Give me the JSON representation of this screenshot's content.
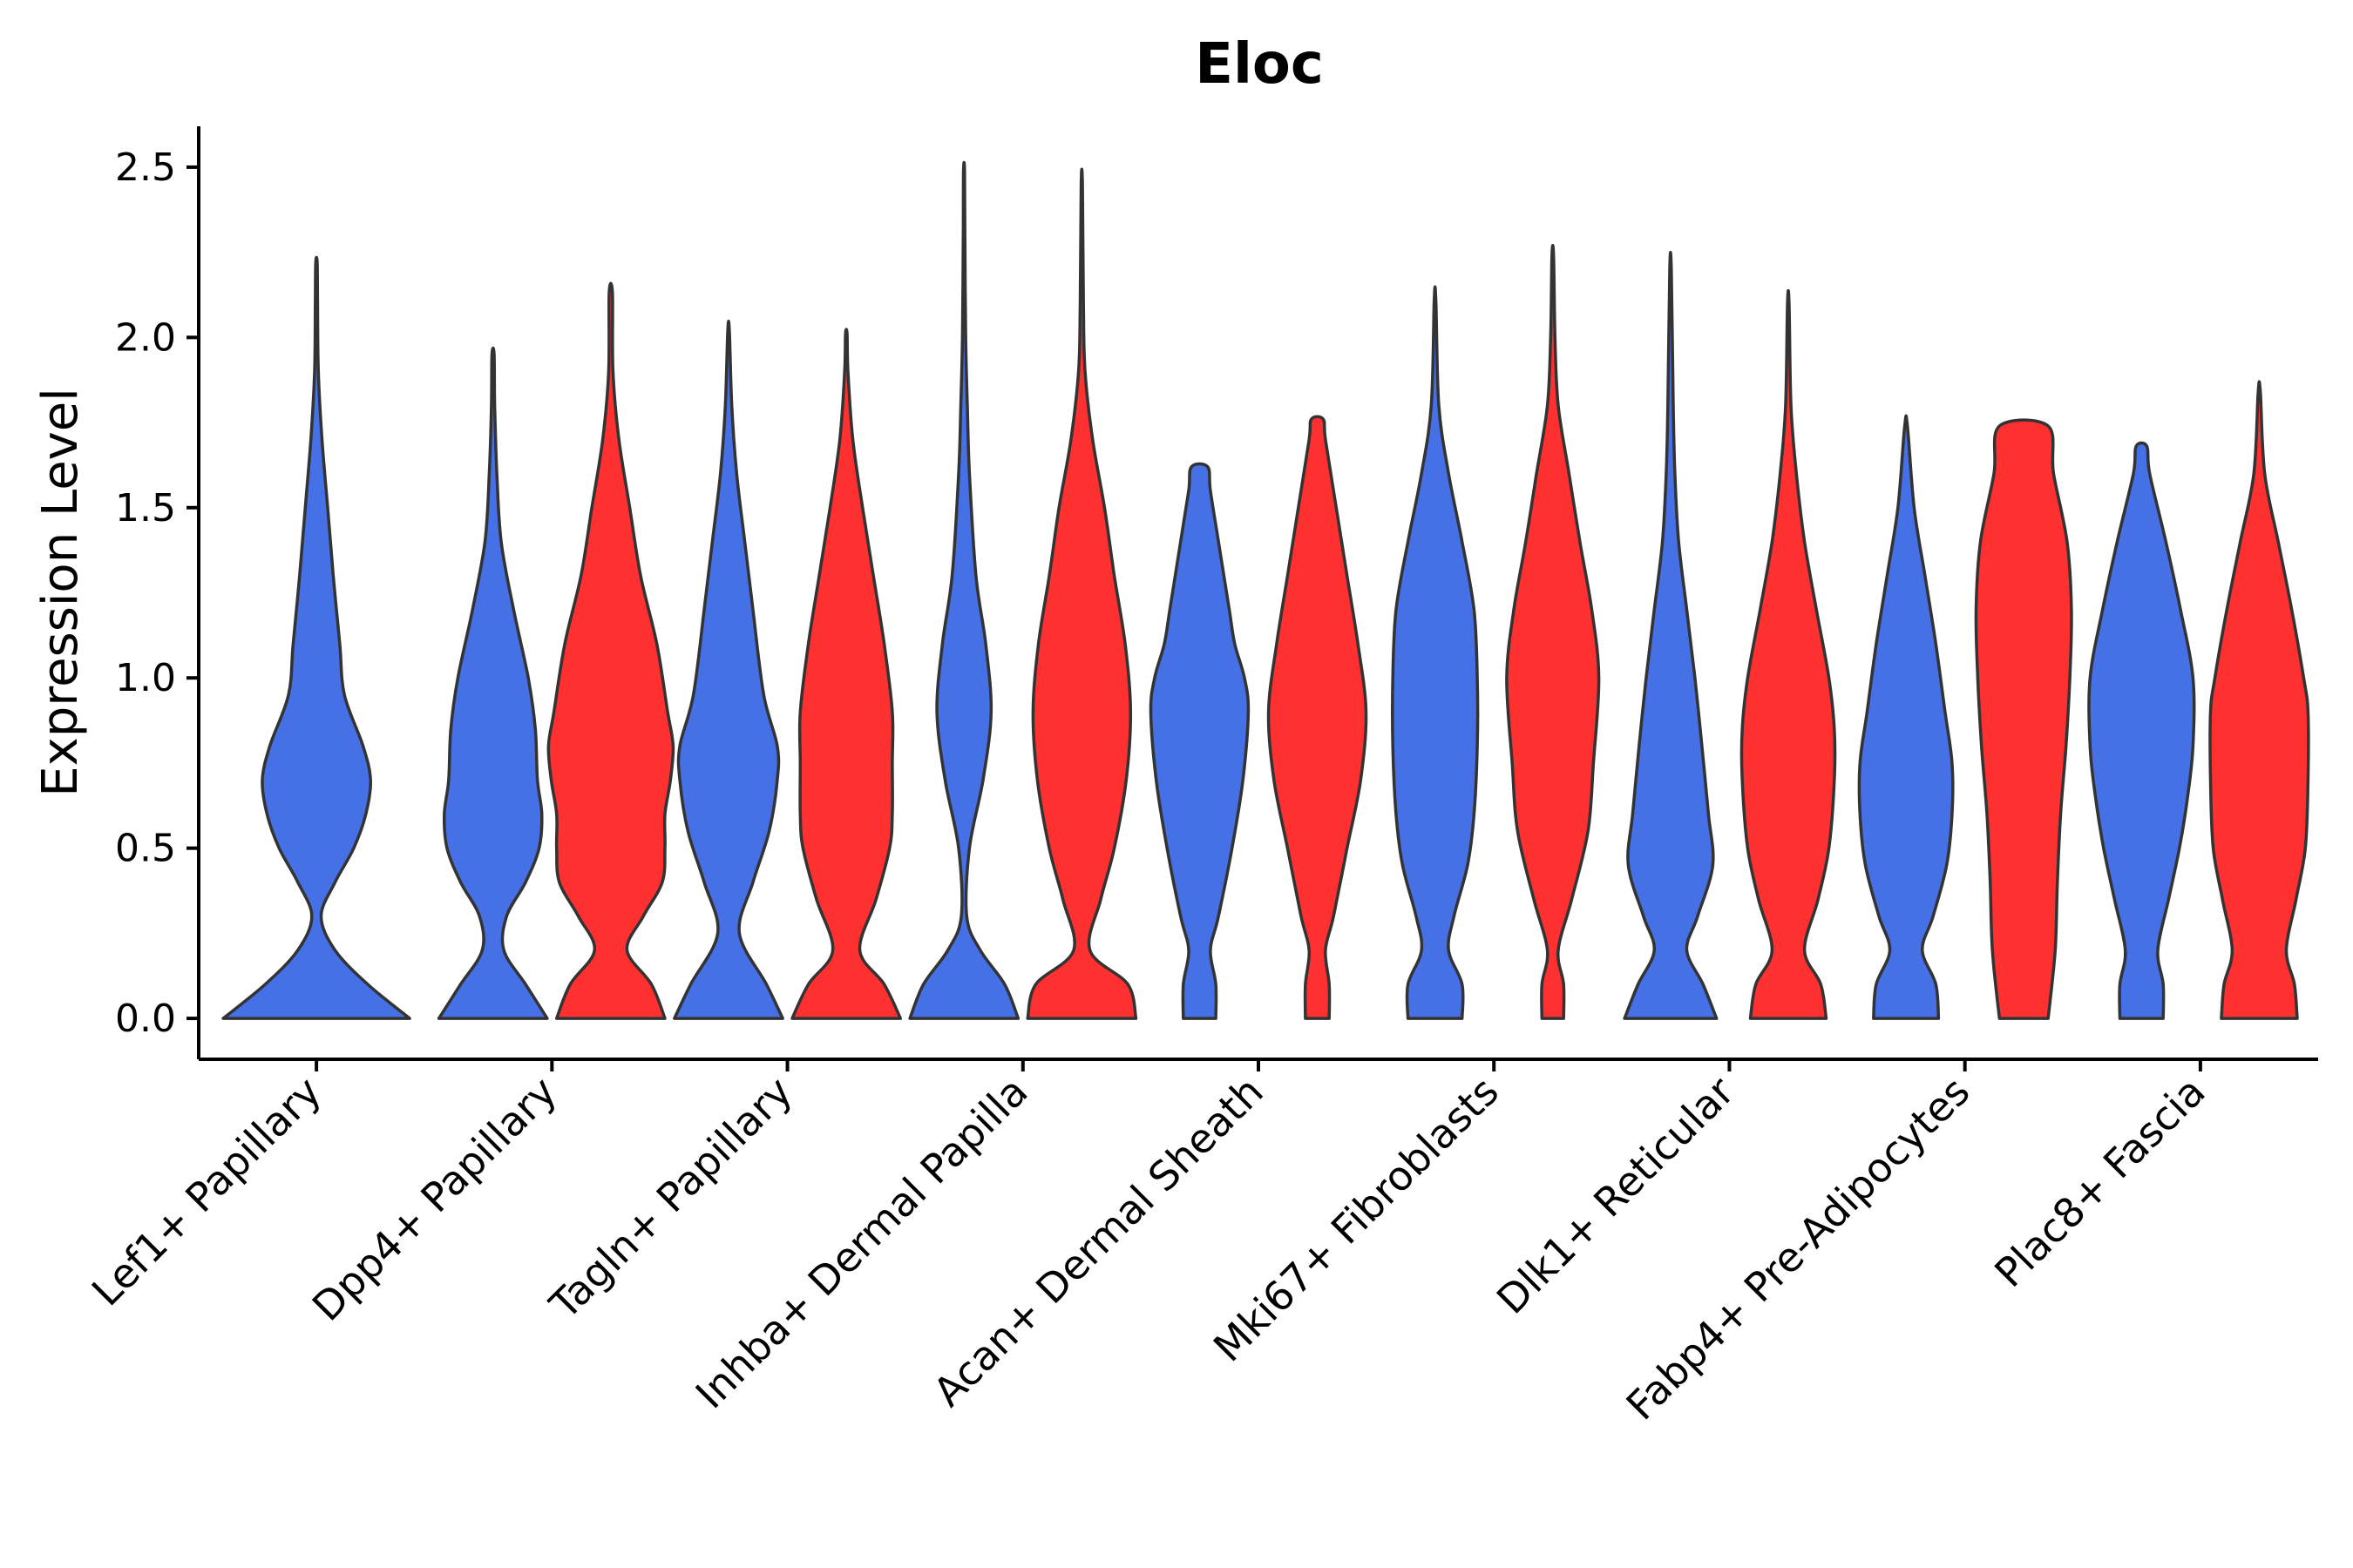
{
  "chart_data": {
    "type": "violin",
    "title": "Eloc",
    "xlabel": "",
    "ylabel": "Expression Level",
    "ylim": [
      -0.12,
      2.62
    ],
    "yticks": [
      0.0,
      0.5,
      1.0,
      1.5,
      2.0,
      2.5
    ],
    "ytick_labels": [
      "0.0",
      "0.5",
      "1.0",
      "1.5",
      "2.0",
      "2.5"
    ],
    "grid": false,
    "legend": "none",
    "series_colors": {
      "A": "#4570E6",
      "B": "#FF3030"
    },
    "categories": [
      "Lef1+ Papillary",
      "Dpp4+ Papillary",
      "Tagln+ Papillary",
      "Inhba+ Dermal Papilla",
      "Acan+ Dermal Sheath",
      "Mki67+ Fibroblasts",
      "Dlk1+ Reticular",
      "Fabp4+ Pre-Adipocytes",
      "Plac8+ Fascia"
    ],
    "violins": [
      {
        "category": "Lef1+ Papillary",
        "series": "A",
        "max": 2.22,
        "profile": [
          [
            0,
            1.0
          ],
          [
            0.1,
            0.55
          ],
          [
            0.2,
            0.2
          ],
          [
            0.3,
            0.05
          ],
          [
            0.4,
            0.2
          ],
          [
            0.5,
            0.4
          ],
          [
            0.6,
            0.53
          ],
          [
            0.7,
            0.58
          ],
          [
            0.8,
            0.5
          ],
          [
            0.95,
            0.3
          ],
          [
            1.1,
            0.25
          ],
          [
            1.3,
            0.18
          ],
          [
            1.5,
            0.12
          ],
          [
            1.7,
            0.06
          ],
          [
            1.9,
            0.02
          ],
          [
            2.1,
            0.012
          ],
          [
            2.22,
            0.008
          ]
        ]
      },
      {
        "category": "Dpp4+ Papillary",
        "series": "A",
        "max": 1.95,
        "profile": [
          [
            0,
            1.0
          ],
          [
            0.1,
            0.6
          ],
          [
            0.2,
            0.2
          ],
          [
            0.3,
            0.25
          ],
          [
            0.4,
            0.6
          ],
          [
            0.5,
            0.85
          ],
          [
            0.6,
            0.9
          ],
          [
            0.7,
            0.82
          ],
          [
            0.85,
            0.78
          ],
          [
            1.0,
            0.65
          ],
          [
            1.2,
            0.38
          ],
          [
            1.4,
            0.15
          ],
          [
            1.6,
            0.07
          ],
          [
            1.8,
            0.03
          ],
          [
            1.95,
            0.02
          ]
        ]
      },
      {
        "category": "Dpp4+ Papillary",
        "series": "B",
        "max": 2.13,
        "profile": [
          [
            0,
            1.0
          ],
          [
            0.1,
            0.75
          ],
          [
            0.2,
            0.3
          ],
          [
            0.3,
            0.6
          ],
          [
            0.4,
            0.95
          ],
          [
            0.5,
            1.0
          ],
          [
            0.6,
            1.0
          ],
          [
            0.7,
            1.1
          ],
          [
            0.8,
            1.15
          ],
          [
            0.9,
            1.05
          ],
          [
            1.1,
            0.85
          ],
          [
            1.3,
            0.55
          ],
          [
            1.5,
            0.35
          ],
          [
            1.7,
            0.15
          ],
          [
            1.9,
            0.04
          ],
          [
            2.13,
            0.03
          ]
        ]
      },
      {
        "category": "Tagln+ Papillary",
        "series": "A",
        "max": 2.02,
        "profile": [
          [
            0,
            1.0
          ],
          [
            0.1,
            0.7
          ],
          [
            0.25,
            0.2
          ],
          [
            0.4,
            0.45
          ],
          [
            0.55,
            0.75
          ],
          [
            0.7,
            0.9
          ],
          [
            0.8,
            0.9
          ],
          [
            0.95,
            0.65
          ],
          [
            1.2,
            0.45
          ],
          [
            1.4,
            0.3
          ],
          [
            1.6,
            0.15
          ],
          [
            1.8,
            0.06
          ],
          [
            2.02,
            0.015
          ]
        ]
      },
      {
        "category": "Tagln+ Papillary",
        "series": "B",
        "max": 2.01,
        "profile": [
          [
            0,
            1.0
          ],
          [
            0.1,
            0.7
          ],
          [
            0.2,
            0.25
          ],
          [
            0.35,
            0.55
          ],
          [
            0.5,
            0.8
          ],
          [
            0.6,
            0.85
          ],
          [
            0.75,
            0.85
          ],
          [
            0.9,
            0.85
          ],
          [
            1.1,
            0.7
          ],
          [
            1.3,
            0.5
          ],
          [
            1.5,
            0.3
          ],
          [
            1.7,
            0.12
          ],
          [
            1.9,
            0.03
          ],
          [
            2.01,
            0.015
          ]
        ]
      },
      {
        "category": "Inhba+ Dermal Papilla",
        "series": "A",
        "max": 2.49,
        "profile": [
          [
            0,
            1.0
          ],
          [
            0.1,
            0.75
          ],
          [
            0.2,
            0.3
          ],
          [
            0.3,
            0.05
          ],
          [
            0.5,
            0.1
          ],
          [
            0.7,
            0.35
          ],
          [
            0.9,
            0.5
          ],
          [
            1.1,
            0.4
          ],
          [
            1.3,
            0.22
          ],
          [
            1.6,
            0.1
          ],
          [
            1.8,
            0.06
          ],
          [
            2.0,
            0.03
          ],
          [
            2.3,
            0.015
          ],
          [
            2.49,
            0.01
          ]
        ]
      },
      {
        "category": "Inhba+ Dermal Papilla",
        "series": "B",
        "max": 2.45,
        "profile": [
          [
            0,
            1.0
          ],
          [
            0.1,
            0.85
          ],
          [
            0.2,
            0.15
          ],
          [
            0.35,
            0.35
          ],
          [
            0.5,
            0.6
          ],
          [
            0.7,
            0.82
          ],
          [
            0.9,
            0.9
          ],
          [
            1.1,
            0.8
          ],
          [
            1.3,
            0.6
          ],
          [
            1.5,
            0.42
          ],
          [
            1.7,
            0.2
          ],
          [
            1.9,
            0.06
          ],
          [
            2.1,
            0.03
          ],
          [
            2.45,
            0.012
          ]
        ]
      },
      {
        "category": "Acan+ Dermal Sheath",
        "series": "A",
        "max": 1.62,
        "profile": [
          [
            0,
            0.3
          ],
          [
            0.1,
            0.3
          ],
          [
            0.2,
            0.2
          ],
          [
            0.3,
            0.35
          ],
          [
            0.5,
            0.6
          ],
          [
            0.7,
            0.8
          ],
          [
            0.9,
            0.9
          ],
          [
            1.0,
            0.83
          ],
          [
            1.1,
            0.65
          ],
          [
            1.2,
            0.55
          ],
          [
            1.4,
            0.35
          ],
          [
            1.55,
            0.2
          ],
          [
            1.62,
            0.15
          ]
        ]
      },
      {
        "category": "Acan+ Dermal Sheath",
        "series": "B",
        "max": 1.76,
        "profile": [
          [
            0,
            0.22
          ],
          [
            0.1,
            0.22
          ],
          [
            0.2,
            0.15
          ],
          [
            0.3,
            0.3
          ],
          [
            0.5,
            0.55
          ],
          [
            0.7,
            0.8
          ],
          [
            0.9,
            0.9
          ],
          [
            1.1,
            0.75
          ],
          [
            1.3,
            0.55
          ],
          [
            1.5,
            0.35
          ],
          [
            1.7,
            0.15
          ],
          [
            1.76,
            0.11
          ]
        ]
      },
      {
        "category": "Mki67+ Fibroblasts",
        "series": "A",
        "max": 2.11,
        "profile": [
          [
            0,
            0.5
          ],
          [
            0.1,
            0.5
          ],
          [
            0.2,
            0.25
          ],
          [
            0.3,
            0.35
          ],
          [
            0.45,
            0.6
          ],
          [
            0.6,
            0.72
          ],
          [
            0.8,
            0.78
          ],
          [
            1.0,
            0.78
          ],
          [
            1.2,
            0.72
          ],
          [
            1.4,
            0.5
          ],
          [
            1.6,
            0.25
          ],
          [
            1.8,
            0.07
          ],
          [
            2.11,
            0.015
          ]
        ]
      },
      {
        "category": "Mki67+ Fibroblasts",
        "series": "B",
        "max": 2.24,
        "profile": [
          [
            0,
            0.2
          ],
          [
            0.1,
            0.2
          ],
          [
            0.2,
            0.1
          ],
          [
            0.35,
            0.35
          ],
          [
            0.55,
            0.65
          ],
          [
            0.75,
            0.75
          ],
          [
            1.0,
            0.85
          ],
          [
            1.2,
            0.72
          ],
          [
            1.4,
            0.5
          ],
          [
            1.6,
            0.3
          ],
          [
            1.8,
            0.1
          ],
          [
            2.0,
            0.04
          ],
          [
            2.24,
            0.015
          ]
        ]
      },
      {
        "category": "Dlk1+ Reticular",
        "series": "A",
        "max": 2.2,
        "profile": [
          [
            0,
            0.85
          ],
          [
            0.1,
            0.6
          ],
          [
            0.2,
            0.3
          ],
          [
            0.3,
            0.5
          ],
          [
            0.45,
            0.78
          ],
          [
            0.6,
            0.7
          ],
          [
            0.8,
            0.58
          ],
          [
            1.0,
            0.45
          ],
          [
            1.2,
            0.3
          ],
          [
            1.4,
            0.15
          ],
          [
            1.6,
            0.08
          ],
          [
            1.8,
            0.05
          ],
          [
            2.2,
            0.015
          ]
        ]
      },
      {
        "category": "Dlk1+ Reticular",
        "series": "B",
        "max": 2.1,
        "profile": [
          [
            0,
            0.7
          ],
          [
            0.1,
            0.6
          ],
          [
            0.2,
            0.3
          ],
          [
            0.35,
            0.55
          ],
          [
            0.5,
            0.75
          ],
          [
            0.7,
            0.85
          ],
          [
            0.85,
            0.85
          ],
          [
            1.0,
            0.75
          ],
          [
            1.2,
            0.52
          ],
          [
            1.4,
            0.3
          ],
          [
            1.6,
            0.15
          ],
          [
            1.8,
            0.05
          ],
          [
            2.1,
            0.015
          ]
        ]
      },
      {
        "category": "Fabp4+ Pre-Adipocytes",
        "series": "A",
        "max": 1.74,
        "profile": [
          [
            0,
            0.6
          ],
          [
            0.1,
            0.55
          ],
          [
            0.2,
            0.3
          ],
          [
            0.3,
            0.5
          ],
          [
            0.45,
            0.75
          ],
          [
            0.6,
            0.85
          ],
          [
            0.75,
            0.85
          ],
          [
            0.9,
            0.72
          ],
          [
            1.1,
            0.55
          ],
          [
            1.3,
            0.35
          ],
          [
            1.5,
            0.15
          ],
          [
            1.74,
            0.025
          ]
        ]
      },
      {
        "category": "Fabp4+ Pre-Adipocytes",
        "series": "B",
        "max": 1.74,
        "profile": [
          [
            0,
            0.45
          ],
          [
            0.2,
            0.58
          ],
          [
            0.4,
            0.62
          ],
          [
            0.6,
            0.68
          ],
          [
            0.8,
            0.78
          ],
          [
            1.0,
            0.85
          ],
          [
            1.2,
            0.88
          ],
          [
            1.4,
            0.8
          ],
          [
            1.6,
            0.55
          ],
          [
            1.74,
            0.45
          ]
        ]
      },
      {
        "category": "Plac8+ Fascia",
        "series": "A",
        "max": 1.68,
        "profile": [
          [
            0,
            0.4
          ],
          [
            0.1,
            0.4
          ],
          [
            0.2,
            0.3
          ],
          [
            0.35,
            0.5
          ],
          [
            0.5,
            0.7
          ],
          [
            0.65,
            0.85
          ],
          [
            0.8,
            0.95
          ],
          [
            1.0,
            0.95
          ],
          [
            1.2,
            0.72
          ],
          [
            1.4,
            0.45
          ],
          [
            1.6,
            0.15
          ],
          [
            1.68,
            0.1
          ]
        ]
      },
      {
        "category": "Plac8+ Fascia",
        "series": "B",
        "max": 1.84,
        "profile": [
          [
            0,
            0.7
          ],
          [
            0.1,
            0.65
          ],
          [
            0.2,
            0.5
          ],
          [
            0.35,
            0.68
          ],
          [
            0.5,
            0.85
          ],
          [
            0.7,
            0.9
          ],
          [
            0.9,
            0.9
          ],
          [
            1.0,
            0.82
          ],
          [
            1.2,
            0.6
          ],
          [
            1.4,
            0.35
          ],
          [
            1.6,
            0.1
          ],
          [
            1.84,
            0.02
          ]
        ]
      }
    ]
  }
}
